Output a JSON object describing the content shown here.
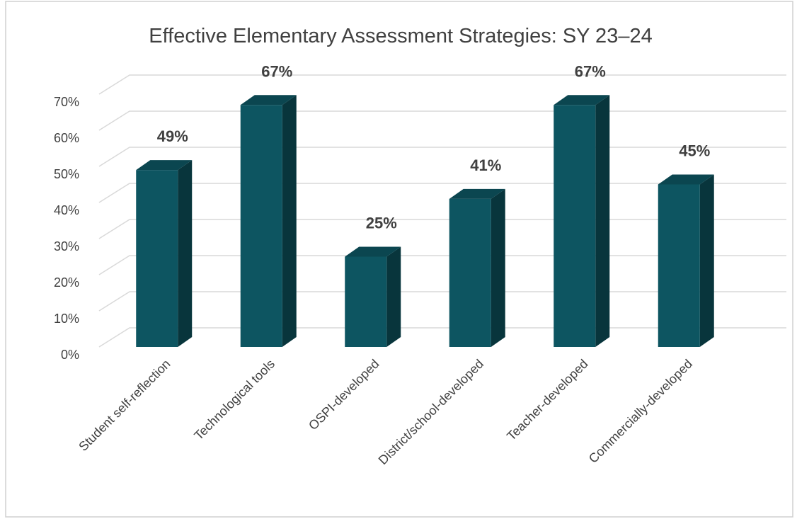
{
  "chart_data": {
    "type": "bar3d",
    "title": "Effective Elementary Assessment Strategies: SY 23–24",
    "categories": [
      "Student self-reflection",
      "Technological tools",
      "OSPI-developed",
      "District/school-developed",
      "Teacher-developed",
      "Commercially-developed"
    ],
    "values": [
      49,
      67,
      25,
      41,
      67,
      45
    ],
    "value_labels": [
      "49%",
      "67%",
      "25%",
      "41%",
      "67%",
      "45%"
    ],
    "color": "#0d5561",
    "ylim": [
      0,
      70
    ],
    "yticks": [
      {
        "value": 0,
        "label": "0%"
      },
      {
        "value": 10,
        "label": "10%"
      },
      {
        "value": 20,
        "label": "20%"
      },
      {
        "value": 30,
        "label": "30%"
      },
      {
        "value": 40,
        "label": "40%"
      },
      {
        "value": 50,
        "label": "50%"
      },
      {
        "value": 60,
        "label": "60%"
      },
      {
        "value": 70,
        "label": "70%"
      }
    ],
    "grid": true
  }
}
